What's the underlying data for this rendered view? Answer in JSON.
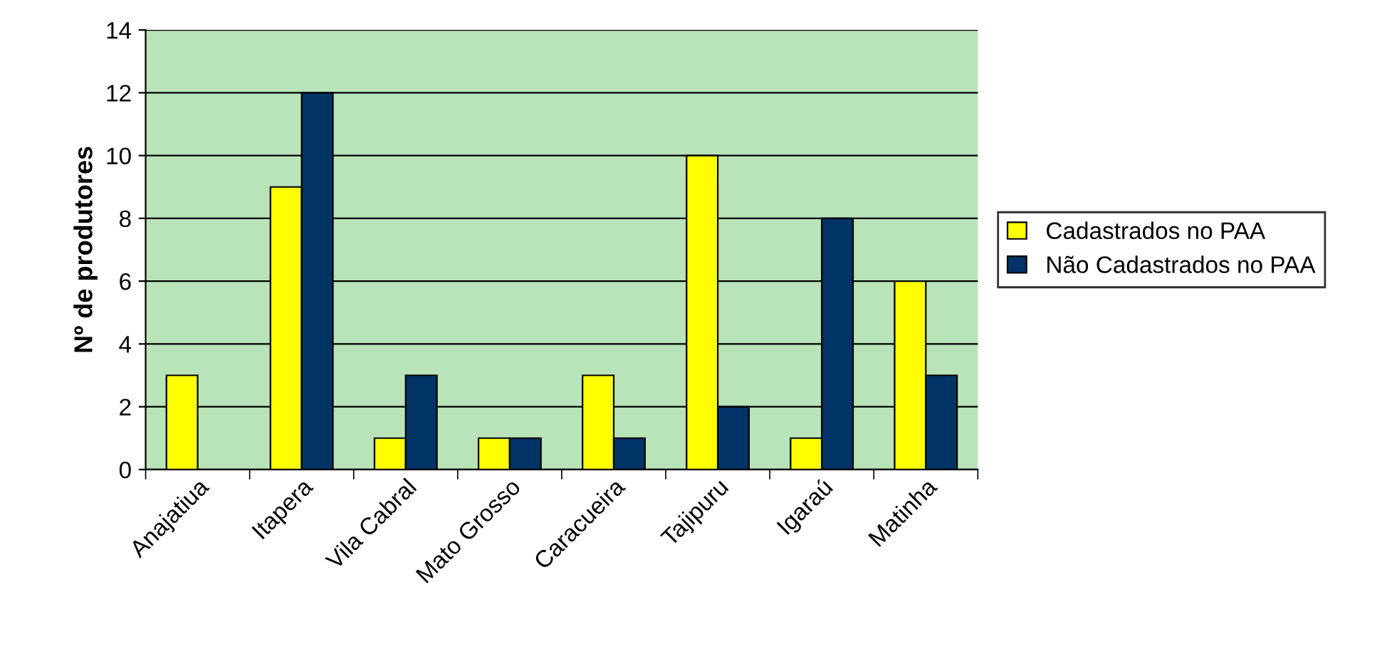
{
  "chart_data": {
    "type": "bar",
    "ylabel": "Nº de produtores",
    "categories": [
      "Anajatiua",
      "Itapera",
      "Vila Cabral",
      "Mato Grosso",
      "Caracueira",
      "Tajipuru",
      "Igaraú",
      "Matinha"
    ],
    "series": [
      {
        "name": "Cadastrados no PAA",
        "color": "#ffff00",
        "values": [
          3,
          9,
          1,
          1,
          3,
          10,
          1,
          6
        ]
      },
      {
        "name": "Não Cadastrados no PAA",
        "color": "#003366",
        "values": [
          null,
          12,
          3,
          1,
          1,
          2,
          8,
          3
        ]
      }
    ],
    "ylim": [
      0,
      14
    ],
    "yticks": [
      0,
      2,
      4,
      6,
      8,
      10,
      12,
      14
    ],
    "grid": "y",
    "legend": "right"
  }
}
